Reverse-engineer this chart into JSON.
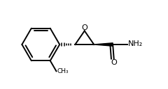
{
  "bg_color": "#ffffff",
  "line_color": "#000000",
  "lw": 1.4,
  "fig_width": 2.4,
  "fig_height": 1.28,
  "dpi": 100,
  "xlim": [
    0.0,
    7.5
  ],
  "ylim": [
    0.5,
    4.5
  ]
}
